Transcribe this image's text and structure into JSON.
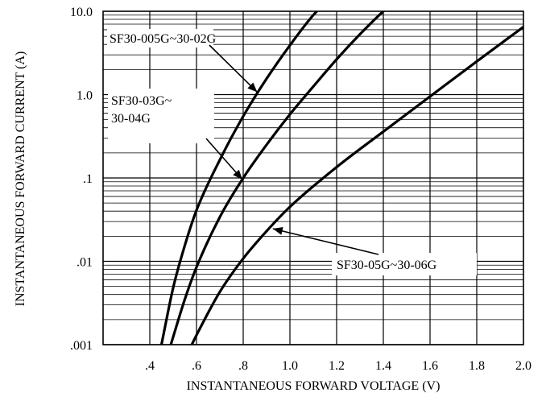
{
  "chart_data": {
    "type": "line",
    "title": "",
    "xlabel": "INSTANTANEOUS FORWARD VOLTAGE (V)",
    "ylabel": "INSTANTANEOUS FORWARD CURRENT (A)",
    "xlim": [
      0.2,
      2.0
    ],
    "ylim": [
      0.001,
      10.0
    ],
    "yscale": "log",
    "grid": true,
    "x_tick_labels": [
      ".4",
      ".6",
      ".8",
      "1.0",
      "1.2",
      "1.4",
      "1.6",
      "1.8",
      "2.0"
    ],
    "x_tick_values": [
      0.4,
      0.6,
      0.8,
      1.0,
      1.2,
      1.4,
      1.6,
      1.8,
      2.0
    ],
    "y_tick_labels": [
      "10.0",
      "1.0",
      ".1",
      ".01",
      ".001"
    ],
    "y_tick_values": [
      10.0,
      1.0,
      0.1,
      0.01,
      0.001
    ],
    "series": [
      {
        "name": "SF30-005G~30-02G",
        "x": [
          0.45,
          0.5,
          0.55,
          0.6,
          0.7,
          0.8,
          0.9,
          1.0,
          1.1,
          1.15
        ],
        "y": [
          0.001,
          0.0048,
          0.0155,
          0.041,
          0.165,
          0.55,
          1.55,
          3.9,
          9.0,
          12.5
        ]
      },
      {
        "name": "SF30-03G~30-04G",
        "x": [
          0.49,
          0.55,
          0.6,
          0.7,
          0.8,
          0.9,
          1.0,
          1.1,
          1.2,
          1.3,
          1.4,
          1.45
        ],
        "y": [
          0.001,
          0.0035,
          0.0085,
          0.034,
          0.1,
          0.25,
          0.58,
          1.25,
          2.65,
          5.3,
          10.0,
          13.0
        ]
      },
      {
        "name": "SF30-05G~30-06G",
        "x": [
          0.58,
          0.6,
          0.7,
          0.8,
          0.9,
          1.0,
          1.2,
          1.4,
          1.6,
          1.8,
          2.0
        ],
        "y": [
          0.001,
          0.0013,
          0.0043,
          0.0108,
          0.023,
          0.045,
          0.135,
          0.36,
          0.95,
          2.5,
          6.5
        ]
      }
    ],
    "annotations": [
      {
        "text": "SF30-005G~30-02G",
        "target_series": 0
      },
      {
        "text": "SF30-03G~",
        "text2": "30-04G",
        "target_series": 1
      },
      {
        "text": "SF30-05G~30-06G",
        "target_series": 2
      }
    ]
  }
}
